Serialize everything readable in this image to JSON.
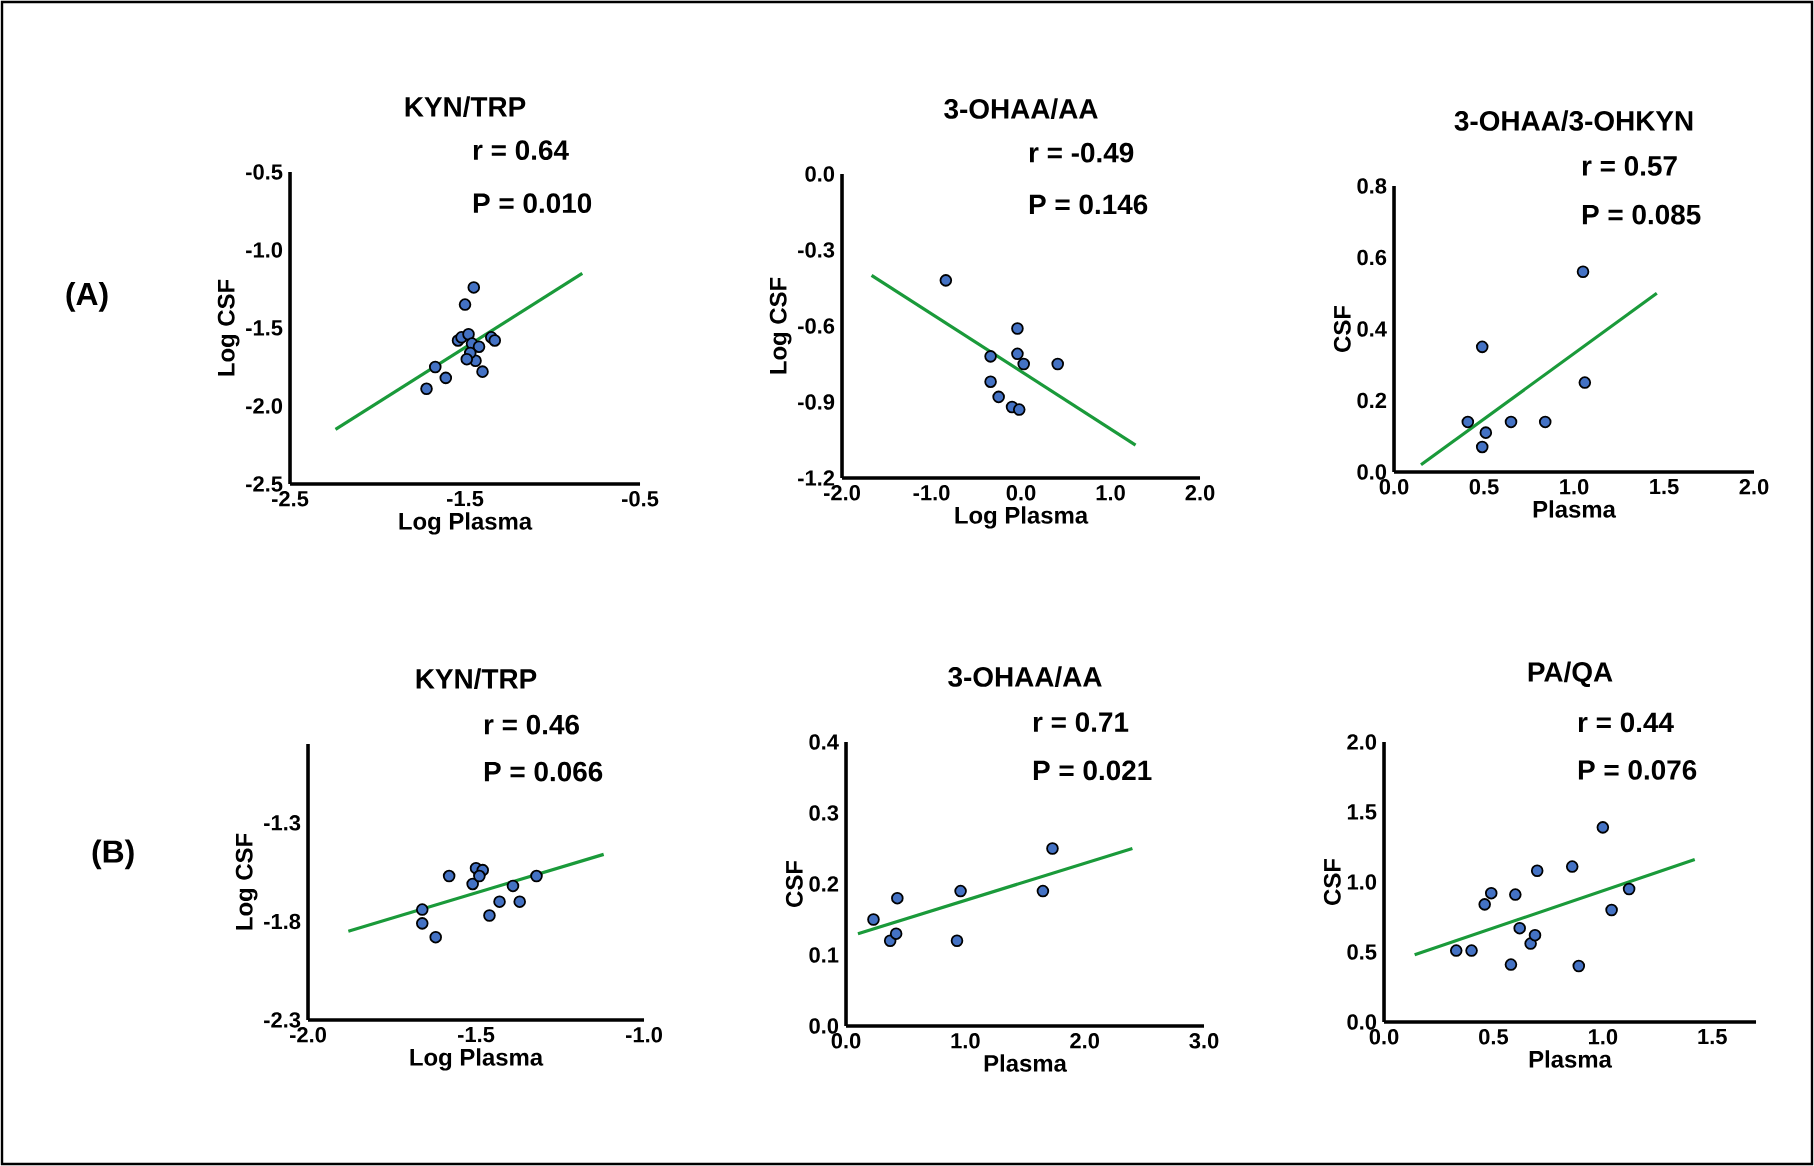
{
  "chart_data": [
    {
      "type": "scatter",
      "title": "KYN/TRP",
      "xlabel": "Log Plasma",
      "ylabel": "Log CSF",
      "annotations": [
        "(A)",
        "r = 0.64",
        "P = 0.010"
      ],
      "xlim": [
        -2.5,
        -0.5
      ],
      "ylim": [
        -2.5,
        -0.5
      ],
      "xticks": [
        {
          "value": -2.5,
          "label": "-2.5"
        },
        {
          "value": -1.5,
          "label": "-1.5"
        },
        {
          "value": -0.5,
          "label": "-0.5"
        }
      ],
      "yticks": [
        {
          "value": -2.5,
          "label": "-2.5"
        },
        {
          "value": -2.0,
          "label": "-2.0"
        },
        {
          "value": -1.5,
          "label": "-1.5"
        },
        {
          "value": -1.0,
          "label": "-1.0"
        },
        {
          "value": -0.5,
          "label": "-0.5"
        }
      ],
      "series": [
        {
          "marker": "circle",
          "color": "#4472c4",
          "x": [
            -1.72,
            -1.67,
            -1.61,
            -1.5,
            -1.45,
            -1.54,
            -1.52,
            -1.48,
            -1.46,
            -1.44,
            -1.42,
            -1.4,
            -1.35,
            -1.33,
            -1.47,
            -1.49
          ],
          "values": [
            -1.89,
            -1.75,
            -1.82,
            -1.35,
            -1.24,
            -1.58,
            -1.56,
            -1.54,
            -1.6,
            -1.71,
            -1.62,
            -1.78,
            -1.56,
            -1.58,
            -1.66,
            -1.7
          ]
        },
        {
          "type": "line",
          "marker": "none",
          "color": "#1a9a3a",
          "x": [
            -2.24,
            -0.83
          ],
          "values": [
            -2.15,
            -1.15
          ]
        }
      ]
    },
    {
      "type": "scatter",
      "title": "3-OHAA/AA",
      "xlabel": "Log Plasma",
      "ylabel": "Log CSF",
      "annotations": [
        "r = -0.49",
        "P = 0.146"
      ],
      "xlim": [
        -2.0,
        2.0
      ],
      "ylim": [
        -1.2,
        0.0
      ],
      "xticks": [
        {
          "value": -2.0,
          "label": "-2.0"
        },
        {
          "value": -1.0,
          "label": "-1.0"
        },
        {
          "value": 0.0,
          "label": "0.0"
        },
        {
          "value": 1.0,
          "label": "1.0"
        },
        {
          "value": 2.0,
          "label": "2.0"
        }
      ],
      "yticks": [
        {
          "value": -1.2,
          "label": "-1.2"
        },
        {
          "value": -0.9,
          "label": "-0.9"
        },
        {
          "value": -0.6,
          "label": "-0.6"
        },
        {
          "value": -0.3,
          "label": "-0.3"
        },
        {
          "value": 0.0,
          "label": "0.0"
        }
      ],
      "series": [
        {
          "marker": "circle",
          "color": "#4472c4",
          "x": [
            -0.84,
            -0.04,
            -0.34,
            -0.04,
            0.03,
            0.41,
            -0.34,
            -0.25,
            -0.1,
            -0.02
          ],
          "values": [
            -0.42,
            -0.61,
            -0.72,
            -0.71,
            -0.75,
            -0.75,
            -0.82,
            -0.88,
            -0.92,
            -0.93
          ]
        },
        {
          "type": "line",
          "marker": "none",
          "color": "#1a9a3a",
          "x": [
            -1.67,
            1.28
          ],
          "values": [
            -0.4,
            -1.07
          ]
        }
      ]
    },
    {
      "type": "scatter",
      "title": "3-OHAA/3-OHKYN",
      "xlabel": "Plasma",
      "ylabel": "CSF",
      "annotations": [
        "r = 0.57",
        "P = 0.085"
      ],
      "xlim": [
        0.0,
        2.0
      ],
      "ylim": [
        0.0,
        0.8
      ],
      "xticks": [
        {
          "value": 0.0,
          "label": "0.0"
        },
        {
          "value": 0.5,
          "label": "0.5"
        },
        {
          "value": 1.0,
          "label": "1.0"
        },
        {
          "value": 1.5,
          "label": "1.5"
        },
        {
          "value": 2.0,
          "label": "2.0"
        }
      ],
      "yticks": [
        {
          "value": 0.0,
          "label": "0.0"
        },
        {
          "value": 0.2,
          "label": "0.2"
        },
        {
          "value": 0.4,
          "label": "0.4"
        },
        {
          "value": 0.6,
          "label": "0.6"
        },
        {
          "value": 0.8,
          "label": "0.8"
        }
      ],
      "series": [
        {
          "marker": "circle",
          "color": "#4472c4",
          "x": [
            0.41,
            0.49,
            0.51,
            0.49,
            0.65,
            0.84,
            1.05,
            1.06
          ],
          "values": [
            0.14,
            0.35,
            0.11,
            0.07,
            0.14,
            0.14,
            0.56,
            0.25
          ]
        },
        {
          "type": "line",
          "marker": "none",
          "color": "#1a9a3a",
          "x": [
            0.15,
            1.46
          ],
          "values": [
            0.02,
            0.5
          ]
        }
      ]
    },
    {
      "type": "scatter",
      "title": "KYN/TRP",
      "xlabel": "Log Plasma",
      "ylabel": "Log CSF",
      "annotations": [
        "(B)",
        "r = 0.46",
        "P = 0.066"
      ],
      "xlim": [
        -2.0,
        -1.0
      ],
      "ylim": [
        -2.3,
        -0.9
      ],
      "xticks": [
        {
          "value": -2.0,
          "label": "-2.0"
        },
        {
          "value": -1.5,
          "label": "-1.5"
        },
        {
          "value": -1.0,
          "label": "-1.0"
        }
      ],
      "yticks": [
        {
          "value": -2.3,
          "label": "-2.3"
        },
        {
          "value": -1.8,
          "label": "-1.8"
        },
        {
          "value": -1.3,
          "label": "-1.3"
        }
      ],
      "series": [
        {
          "marker": "circle",
          "color": "#4472c4",
          "x": [
            -1.66,
            -1.66,
            -1.62,
            -1.58,
            -1.5,
            -1.48,
            -1.51,
            -1.49,
            -1.43,
            -1.46,
            -1.39,
            -1.37,
            -1.32
          ],
          "values": [
            -1.74,
            -1.81,
            -1.88,
            -1.57,
            -1.53,
            -1.54,
            -1.61,
            -1.57,
            -1.7,
            -1.77,
            -1.62,
            -1.7,
            -1.57
          ]
        },
        {
          "type": "line",
          "marker": "none",
          "color": "#1a9a3a",
          "x": [
            -1.88,
            -1.12
          ],
          "values": [
            -1.85,
            -1.46
          ]
        }
      ]
    },
    {
      "type": "scatter",
      "title": "3-OHAA/AA",
      "xlabel": "Plasma",
      "ylabel": "CSF",
      "annotations": [
        "r = 0.71",
        "P = 0.021"
      ],
      "xlim": [
        0.0,
        3.0
      ],
      "ylim": [
        0.0,
        0.4
      ],
      "xticks": [
        {
          "value": 0.0,
          "label": "0.0"
        },
        {
          "value": 1.0,
          "label": "1.0"
        },
        {
          "value": 2.0,
          "label": "2.0"
        },
        {
          "value": 3.0,
          "label": "3.0"
        }
      ],
      "yticks": [
        {
          "value": 0.0,
          "label": "0.0"
        },
        {
          "value": 0.1,
          "label": "0.1"
        },
        {
          "value": 0.2,
          "label": "0.2"
        },
        {
          "value": 0.3,
          "label": "0.3"
        },
        {
          "value": 0.4,
          "label": "0.4"
        }
      ],
      "series": [
        {
          "marker": "circle",
          "color": "#4472c4",
          "x": [
            0.23,
            0.37,
            0.42,
            0.43,
            0.93,
            0.96,
            1.65,
            1.73
          ],
          "values": [
            0.15,
            0.12,
            0.13,
            0.18,
            0.12,
            0.19,
            0.19,
            0.25
          ]
        },
        {
          "type": "line",
          "marker": "none",
          "color": "#1a9a3a",
          "x": [
            0.1,
            2.4
          ],
          "values": [
            0.13,
            0.25
          ]
        }
      ]
    },
    {
      "type": "scatter",
      "title": "PA/QA",
      "xlabel": "Plasma",
      "ylabel": "CSF",
      "annotations": [
        "r = 0.44",
        "P = 0.076"
      ],
      "xlim": [
        0.0,
        1.7
      ],
      "ylim": [
        0.0,
        2.0
      ],
      "xticks": [
        {
          "value": 0.0,
          "label": "0.0"
        },
        {
          "value": 0.5,
          "label": "0.5"
        },
        {
          "value": 1.0,
          "label": "1.0"
        },
        {
          "value": 1.5,
          "label": "1.5"
        }
      ],
      "yticks": [
        {
          "value": 0.0,
          "label": "0.0"
        },
        {
          "value": 0.5,
          "label": "0.5"
        },
        {
          "value": 1.0,
          "label": "1.0"
        },
        {
          "value": 1.5,
          "label": "1.5"
        },
        {
          "value": 2.0,
          "label": "2.0"
        }
      ],
      "series": [
        {
          "marker": "circle",
          "color": "#4472c4",
          "x": [
            0.33,
            0.4,
            0.46,
            0.49,
            0.58,
            0.6,
            0.62,
            0.67,
            0.69,
            0.7,
            0.86,
            0.89,
            1.0,
            1.04,
            1.12
          ],
          "values": [
            0.51,
            0.51,
            0.84,
            0.92,
            0.41,
            0.91,
            0.67,
            0.56,
            0.62,
            1.08,
            1.11,
            0.4,
            1.39,
            0.8,
            0.95
          ]
        },
        {
          "type": "line",
          "marker": "none",
          "color": "#1a9a3a",
          "x": [
            0.14,
            1.42
          ],
          "values": [
            0.48,
            1.16
          ]
        }
      ]
    }
  ]
}
